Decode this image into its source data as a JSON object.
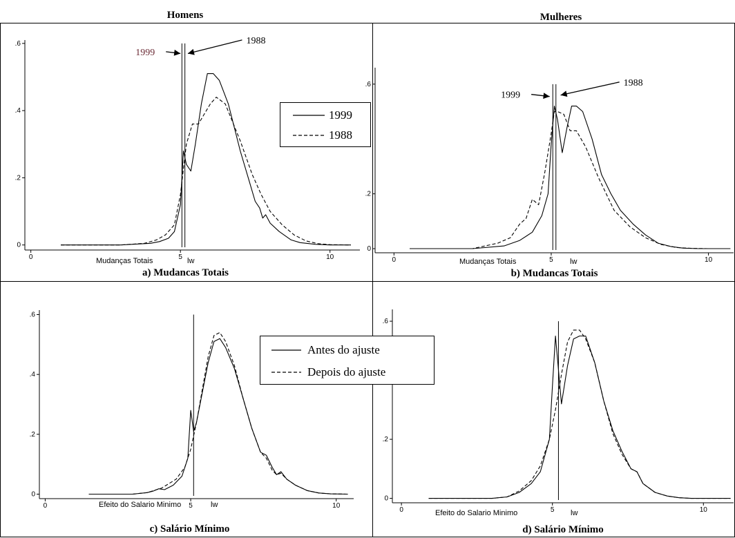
{
  "headers": {
    "left": "Homens",
    "right": "Mulheres"
  },
  "legends": {
    "top": [
      {
        "label": "1999",
        "style": "solid"
      },
      {
        "label": "1988",
        "style": "dashed"
      }
    ],
    "bottom": [
      {
        "label": "Antes do ajuste",
        "style": "solid"
      },
      {
        "label": "Depois do ajuste",
        "style": "dashed"
      }
    ]
  },
  "chart_data": [
    {
      "type": "line",
      "title": "a) Mudancas Totais",
      "xlabel": "lw",
      "x_caption": "Mudanças Totais",
      "xlim": [
        -0.2,
        11
      ],
      "ylim": [
        -0.015,
        0.61
      ],
      "x_ticks": [
        {
          "v": 0,
          "label": "0"
        },
        {
          "v": 5,
          "label": "5"
        },
        {
          "v": 10,
          "label": "10"
        }
      ],
      "y_ticks": [
        {
          "v": 0,
          "label": "0"
        },
        {
          "v": 0.2,
          "label": ".2"
        },
        {
          "v": 0.4,
          "label": ".4"
        },
        {
          "v": 0.6,
          "label": ".6"
        }
      ],
      "vlines": [
        5.05,
        5.15
      ],
      "annotations": [
        {
          "text": "1999",
          "x": 3.5,
          "y": 0.565,
          "arrow_to": [
            5.0,
            0.57
          ],
          "color": "#6b2b35"
        },
        {
          "text": "1988",
          "x": 7.2,
          "y": 0.6,
          "arrow_to": [
            5.25,
            0.57
          ],
          "color": "#000000"
        }
      ],
      "series": [
        {
          "name": "1999",
          "style": "solid",
          "x": [
            1.0,
            3.0,
            4.0,
            4.3,
            4.6,
            4.8,
            5.0,
            5.1,
            5.2,
            5.35,
            5.5,
            5.7,
            5.9,
            6.1,
            6.3,
            6.6,
            7.0,
            7.3,
            7.5,
            7.65,
            7.75,
            7.85,
            8.0,
            8.3,
            8.7,
            9.0,
            9.5,
            10.0,
            10.7
          ],
          "y": [
            0.0,
            0.0,
            0.005,
            0.01,
            0.02,
            0.04,
            0.12,
            0.28,
            0.24,
            0.22,
            0.3,
            0.42,
            0.51,
            0.51,
            0.49,
            0.42,
            0.28,
            0.19,
            0.13,
            0.11,
            0.08,
            0.09,
            0.065,
            0.04,
            0.015,
            0.007,
            0.002,
            0.0,
            0.0
          ]
        },
        {
          "name": "1988",
          "style": "dashed",
          "x": [
            1.0,
            3.0,
            3.8,
            4.2,
            4.5,
            4.8,
            5.0,
            5.2,
            5.4,
            5.6,
            5.8,
            6.0,
            6.2,
            6.5,
            7.0,
            7.4,
            7.7,
            8.0,
            8.4,
            8.8,
            9.2,
            9.6,
            10.0,
            10.7
          ],
          "y": [
            0.0,
            0.0,
            0.005,
            0.015,
            0.03,
            0.06,
            0.15,
            0.3,
            0.36,
            0.36,
            0.39,
            0.42,
            0.44,
            0.42,
            0.31,
            0.21,
            0.15,
            0.1,
            0.06,
            0.03,
            0.012,
            0.004,
            0.001,
            0.0
          ]
        }
      ]
    },
    {
      "type": "line",
      "title": "b) Mudancas Totais",
      "xlabel": "lw",
      "x_caption": "Mudanças Totais",
      "xlim": [
        -0.6,
        10.8
      ],
      "ylim": [
        -0.015,
        0.66
      ],
      "x_ticks": [
        {
          "v": 0,
          "label": "0"
        },
        {
          "v": 5,
          "label": "5"
        },
        {
          "v": 10,
          "label": "10"
        }
      ],
      "y_ticks": [
        {
          "v": 0,
          "label": "0"
        },
        {
          "v": 0.2,
          "label": ".2"
        },
        {
          "v": 0.6,
          "label": ".6"
        }
      ],
      "vlines": [
        5.05,
        5.15
      ],
      "annotations": [
        {
          "text": "1999",
          "x": 3.4,
          "y": 0.55,
          "arrow_to": [
            4.95,
            0.555
          ],
          "color": "#000000"
        },
        {
          "text": "1988",
          "x": 7.3,
          "y": 0.595,
          "arrow_to": [
            5.3,
            0.56
          ],
          "color": "#000000"
        }
      ],
      "series": [
        {
          "name": "1999",
          "style": "solid",
          "x": [
            0.5,
            2.5,
            3.5,
            4.0,
            4.4,
            4.7,
            4.9,
            5.0,
            5.1,
            5.2,
            5.35,
            5.5,
            5.65,
            5.8,
            6.0,
            6.3,
            6.6,
            6.9,
            7.2,
            7.6,
            8.0,
            8.4,
            8.8,
            9.2,
            9.7,
            10.7
          ],
          "y": [
            0.0,
            0.0,
            0.01,
            0.03,
            0.06,
            0.12,
            0.2,
            0.38,
            0.52,
            0.47,
            0.35,
            0.44,
            0.52,
            0.52,
            0.5,
            0.4,
            0.27,
            0.2,
            0.14,
            0.09,
            0.05,
            0.02,
            0.008,
            0.002,
            0.0,
            0.0
          ]
        },
        {
          "name": "1988",
          "style": "dashed",
          "x": [
            0.5,
            2.5,
            3.3,
            3.7,
            4.0,
            4.2,
            4.4,
            4.6,
            4.8,
            5.0,
            5.1,
            5.2,
            5.4,
            5.6,
            5.8,
            6.1,
            6.5,
            7.0,
            7.5,
            8.0,
            8.5,
            9.0,
            9.5,
            10.0,
            10.7
          ],
          "y": [
            0.0,
            0.0,
            0.02,
            0.04,
            0.09,
            0.11,
            0.18,
            0.16,
            0.28,
            0.42,
            0.5,
            0.5,
            0.49,
            0.43,
            0.43,
            0.37,
            0.26,
            0.14,
            0.08,
            0.04,
            0.015,
            0.004,
            0.001,
            0.0,
            0.0
          ]
        }
      ]
    },
    {
      "type": "line",
      "title": "c) Salário Mínimo",
      "xlabel": "lw",
      "x_caption": "Efeito do Salario Minimo",
      "xlim": [
        -0.2,
        10.6
      ],
      "ylim": [
        -0.015,
        0.615
      ],
      "x_ticks": [
        {
          "v": 0,
          "label": "0"
        },
        {
          "v": 5,
          "label": "5"
        },
        {
          "v": 10,
          "label": "10"
        }
      ],
      "y_ticks": [
        {
          "v": 0,
          "label": "0"
        },
        {
          "v": 0.2,
          "label": ".2"
        },
        {
          "v": 0.4,
          "label": ".4"
        },
        {
          "v": 0.6,
          "label": ".6"
        }
      ],
      "vlines": [
        5.1
      ],
      "annotations": [],
      "series": [
        {
          "name": "Antes do ajuste",
          "style": "solid",
          "x": [
            1.5,
            3.0,
            3.5,
            3.7,
            3.9,
            4.1,
            4.4,
            4.7,
            4.9,
            5.0,
            5.1,
            5.2,
            5.4,
            5.6,
            5.8,
            6.0,
            6.2,
            6.5,
            6.8,
            7.1,
            7.4,
            7.6,
            7.8,
            7.95,
            8.1,
            8.3,
            8.6,
            9.0,
            9.4,
            9.8,
            10.4
          ],
          "y": [
            0.0,
            0.0,
            0.005,
            0.01,
            0.018,
            0.015,
            0.03,
            0.06,
            0.12,
            0.28,
            0.21,
            0.24,
            0.34,
            0.44,
            0.51,
            0.52,
            0.49,
            0.42,
            0.32,
            0.22,
            0.14,
            0.13,
            0.09,
            0.065,
            0.075,
            0.05,
            0.03,
            0.012,
            0.004,
            0.001,
            0.0
          ]
        },
        {
          "name": "Depois do ajuste",
          "style": "dashed",
          "x": [
            1.5,
            3.0,
            3.5,
            4.0,
            4.5,
            4.8,
            5.0,
            5.2,
            5.4,
            5.6,
            5.8,
            6.0,
            6.2,
            6.5,
            6.8,
            7.1,
            7.4,
            7.6,
            7.8,
            7.95,
            8.1,
            8.3,
            8.6,
            9.0,
            9.4,
            9.8,
            10.4
          ],
          "y": [
            0.0,
            0.0,
            0.005,
            0.02,
            0.05,
            0.09,
            0.15,
            0.24,
            0.35,
            0.46,
            0.53,
            0.54,
            0.51,
            0.43,
            0.32,
            0.22,
            0.14,
            0.12,
            0.08,
            0.065,
            0.07,
            0.05,
            0.03,
            0.012,
            0.004,
            0.001,
            0.0
          ]
        }
      ]
    },
    {
      "type": "line",
      "title": "d) Salário Mínimo",
      "xlabel": "lw",
      "x_caption": "Efeito do Salario Minimo",
      "xlim": [
        -0.3,
        11.0
      ],
      "ylim": [
        -0.015,
        0.64
      ],
      "x_ticks": [
        {
          "v": 0,
          "label": "0"
        },
        {
          "v": 5,
          "label": "5"
        },
        {
          "v": 10,
          "label": "10"
        }
      ],
      "y_ticks": [
        {
          "v": 0,
          "label": "0"
        },
        {
          "v": 0.2,
          "label": ".2"
        },
        {
          "v": 0.6,
          "label": ".6"
        }
      ],
      "vlines": [
        5.2
      ],
      "annotations": [],
      "series": [
        {
          "name": "Antes do ajuste",
          "style": "solid",
          "x": [
            0.9,
            3.0,
            3.5,
            3.9,
            4.3,
            4.6,
            4.9,
            5.0,
            5.1,
            5.3,
            5.5,
            5.7,
            5.9,
            6.1,
            6.4,
            6.7,
            7.0,
            7.3,
            7.6,
            7.8,
            8.0,
            8.4,
            8.8,
            9.2,
            9.6,
            10.0,
            10.9
          ],
          "y": [
            0.0,
            0.0,
            0.005,
            0.02,
            0.05,
            0.09,
            0.2,
            0.38,
            0.55,
            0.32,
            0.45,
            0.54,
            0.55,
            0.55,
            0.46,
            0.33,
            0.23,
            0.16,
            0.1,
            0.09,
            0.05,
            0.02,
            0.008,
            0.002,
            0.0,
            0.0,
            0.0
          ]
        },
        {
          "name": "Depois do ajuste",
          "style": "dashed",
          "x": [
            0.9,
            3.0,
            3.5,
            3.9,
            4.3,
            4.6,
            4.9,
            5.1,
            5.3,
            5.5,
            5.7,
            5.9,
            6.1,
            6.4,
            6.7,
            7.0,
            7.3,
            7.6,
            7.8,
            8.0,
            8.4,
            8.8,
            9.2,
            9.6,
            10.0,
            10.9
          ],
          "y": [
            0.0,
            0.0,
            0.005,
            0.025,
            0.06,
            0.11,
            0.2,
            0.3,
            0.42,
            0.53,
            0.57,
            0.57,
            0.54,
            0.46,
            0.33,
            0.22,
            0.15,
            0.1,
            0.09,
            0.05,
            0.02,
            0.008,
            0.002,
            0.0,
            0.0,
            0.0
          ]
        }
      ]
    }
  ]
}
